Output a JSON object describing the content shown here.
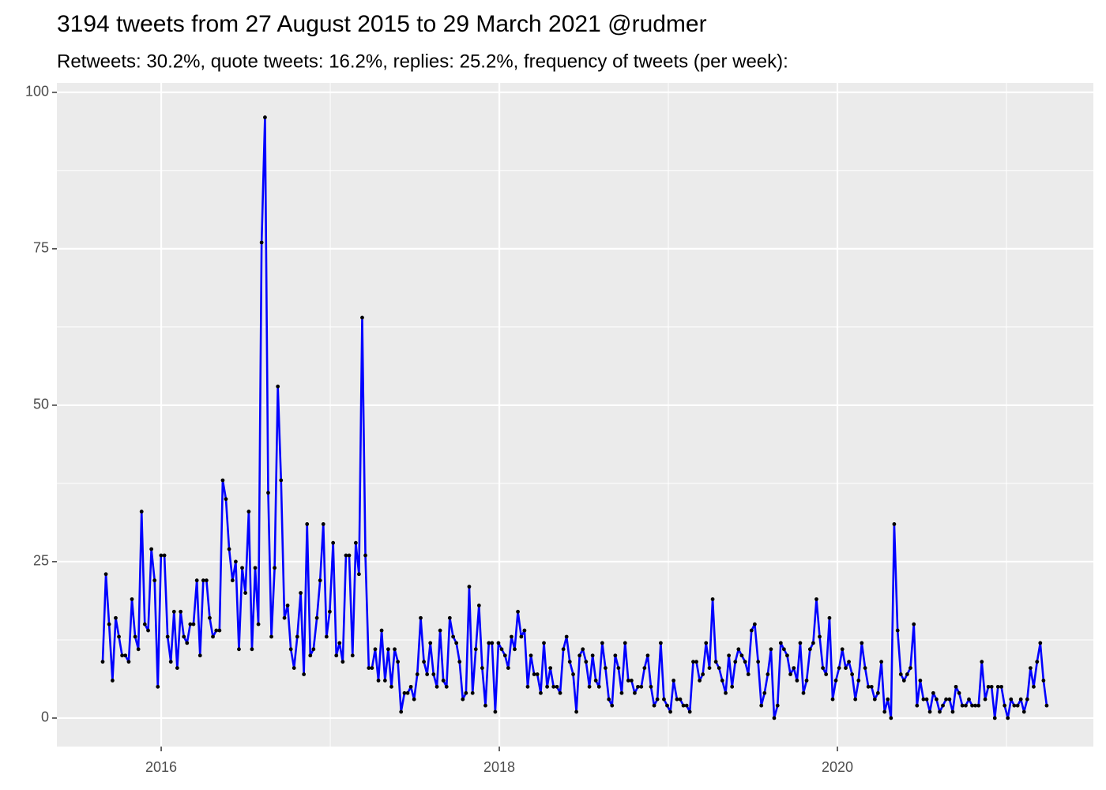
{
  "chart_data": {
    "type": "line",
    "title": "3194 tweets from 27 August 2015 to 29 March 2021 @rudmer",
    "subtitle": "Retweets: 30.2%, quote tweets: 16.2%, replies: 25.2%, frequency of tweets (per week):",
    "color": "#0000ff",
    "marker_color": "#000000",
    "grid": true,
    "xlim": [
      2015.383,
      2021.514
    ],
    "xticks": [
      2016,
      2018,
      2020
    ],
    "x_minor_grid": [
      2017,
      2019,
      2021
    ],
    "ylim": [
      -4.55,
      101.5
    ],
    "yticks": [
      0,
      25,
      50,
      75,
      100
    ],
    "y_minor_grid": [
      12.5,
      37.5,
      62.5,
      87.5
    ],
    "x": [
      2015.654,
      2015.673,
      2015.692,
      2015.712,
      2015.731,
      2015.75,
      2015.769,
      2015.788,
      2015.808,
      2015.827,
      2015.846,
      2015.865,
      2015.884,
      2015.903,
      2015.923,
      2015.942,
      2015.961,
      2015.98,
      2015.999,
      2016.019,
      2016.038,
      2016.057,
      2016.076,
      2016.095,
      2016.115,
      2016.134,
      2016.153,
      2016.172,
      2016.191,
      2016.211,
      2016.23,
      2016.249,
      2016.268,
      2016.287,
      2016.306,
      2016.326,
      2016.345,
      2016.364,
      2016.383,
      2016.402,
      2016.422,
      2016.441,
      2016.46,
      2016.479,
      2016.498,
      2016.518,
      2016.537,
      2016.556,
      2016.575,
      2016.594,
      2016.614,
      2016.633,
      2016.652,
      2016.671,
      2016.69,
      2016.709,
      2016.729,
      2016.748,
      2016.767,
      2016.786,
      2016.805,
      2016.825,
      2016.844,
      2016.863,
      2016.882,
      2016.901,
      2016.921,
      2016.94,
      2016.959,
      2016.978,
      2016.997,
      2017.017,
      2017.036,
      2017.055,
      2017.074,
      2017.093,
      2017.112,
      2017.132,
      2017.151,
      2017.17,
      2017.189,
      2017.208,
      2017.228,
      2017.247,
      2017.266,
      2017.285,
      2017.304,
      2017.324,
      2017.343,
      2017.362,
      2017.381,
      2017.4,
      2017.419,
      2017.439,
      2017.458,
      2017.477,
      2017.496,
      2017.515,
      2017.535,
      2017.554,
      2017.573,
      2017.592,
      2017.611,
      2017.631,
      2017.65,
      2017.669,
      2017.688,
      2017.707,
      2017.727,
      2017.746,
      2017.765,
      2017.784,
      2017.803,
      2017.822,
      2017.842,
      2017.861,
      2017.88,
      2017.899,
      2017.918,
      2017.938,
      2017.957,
      2017.976,
      2017.995,
      2018.014,
      2018.034,
      2018.053,
      2018.072,
      2018.091,
      2018.11,
      2018.13,
      2018.149,
      2018.168,
      2018.187,
      2018.206,
      2018.225,
      2018.245,
      2018.264,
      2018.283,
      2018.302,
      2018.321,
      2018.341,
      2018.36,
      2018.379,
      2018.398,
      2018.417,
      2018.437,
      2018.456,
      2018.475,
      2018.494,
      2018.513,
      2018.533,
      2018.552,
      2018.571,
      2018.59,
      2018.609,
      2018.628,
      2018.648,
      2018.667,
      2018.686,
      2018.705,
      2018.724,
      2018.744,
      2018.763,
      2018.782,
      2018.801,
      2018.82,
      2018.84,
      2018.859,
      2018.878,
      2018.897,
      2018.916,
      2018.935,
      2018.955,
      2018.974,
      2018.993,
      2019.012,
      2019.031,
      2019.051,
      2019.07,
      2019.089,
      2019.108,
      2019.127,
      2019.147,
      2019.166,
      2019.185,
      2019.204,
      2019.223,
      2019.243,
      2019.262,
      2019.281,
      2019.3,
      2019.319,
      2019.339,
      2019.358,
      2019.377,
      2019.396,
      2019.415,
      2019.434,
      2019.454,
      2019.473,
      2019.492,
      2019.511,
      2019.531,
      2019.55,
      2019.569,
      2019.588,
      2019.607,
      2019.626,
      2019.646,
      2019.665,
      2019.684,
      2019.703,
      2019.722,
      2019.742,
      2019.761,
      2019.78,
      2019.799,
      2019.818,
      2019.838,
      2019.857,
      2019.876,
      2019.895,
      2019.914,
      2019.933,
      2019.953,
      2019.972,
      2019.991,
      2020.01,
      2020.029,
      2020.049,
      2020.068,
      2020.087,
      2020.106,
      2020.125,
      2020.144,
      2020.164,
      2020.183,
      2020.202,
      2020.221,
      2020.24,
      2020.26,
      2020.279,
      2020.298,
      2020.317,
      2020.336,
      2020.356,
      2020.375,
      2020.394,
      2020.413,
      2020.432,
      2020.452,
      2020.471,
      2020.49,
      2020.509,
      2020.528,
      2020.547,
      2020.567,
      2020.586,
      2020.605,
      2020.624,
      2020.643,
      2020.663,
      2020.682,
      2020.701,
      2020.72,
      2020.739,
      2020.759,
      2020.778,
      2020.797,
      2020.816,
      2020.835,
      2020.854,
      2020.874,
      2020.893,
      2020.912,
      2020.931,
      2020.95,
      2020.97,
      2020.989,
      2021.008,
      2021.027,
      2021.046,
      2021.066,
      2021.085,
      2021.104,
      2021.123,
      2021.142,
      2021.161,
      2021.181,
      2021.2,
      2021.219,
      2021.238
    ],
    "values": [
      9,
      23,
      15,
      6,
      16,
      13,
      10,
      10,
      9,
      19,
      13,
      11,
      33,
      15,
      14,
      27,
      22,
      5,
      26,
      26,
      13,
      9,
      17,
      8,
      17,
      13,
      12,
      15,
      15,
      22,
      10,
      22,
      22,
      16,
      13,
      14,
      14,
      38,
      35,
      27,
      22,
      25,
      11,
      24,
      20,
      33,
      11,
      24,
      15,
      76,
      96,
      36,
      13,
      24,
      53,
      38,
      16,
      18,
      11,
      8,
      13,
      20,
      7,
      31,
      10,
      11,
      16,
      22,
      31,
      13,
      17,
      28,
      10,
      12,
      9,
      26,
      26,
      10,
      28,
      23,
      64,
      26,
      8,
      8,
      11,
      6,
      14,
      6,
      11,
      5,
      11,
      9,
      1,
      4,
      4,
      5,
      3,
      7,
      16,
      9,
      7,
      12,
      7,
      5,
      14,
      6,
      5,
      16,
      13,
      12,
      9,
      3,
      4,
      21,
      4,
      11,
      18,
      8,
      2,
      12,
      12,
      1,
      12,
      11,
      10,
      8,
      13,
      11,
      17,
      13,
      14,
      5,
      10,
      7,
      7,
      4,
      12,
      5,
      8,
      5,
      5,
      4,
      11,
      13,
      9,
      7,
      1,
      10,
      11,
      9,
      5,
      10,
      6,
      5,
      12,
      8,
      3,
      2,
      10,
      8,
      4,
      12,
      6,
      6,
      4,
      5,
      5,
      8,
      10,
      5,
      2,
      3,
      12,
      3,
      2,
      1,
      6,
      3,
      3,
      2,
      2,
      1,
      9,
      9,
      6,
      7,
      12,
      8,
      19,
      9,
      8,
      6,
      4,
      10,
      5,
      9,
      11,
      10,
      9,
      7,
      14,
      15,
      9,
      2,
      4,
      7,
      11,
      0,
      2,
      12,
      11,
      10,
      7,
      8,
      6,
      12,
      4,
      6,
      11,
      12,
      19,
      13,
      8,
      7,
      16,
      3,
      6,
      8,
      11,
      8,
      9,
      7,
      3,
      6,
      12,
      8,
      5,
      5,
      3,
      4,
      9,
      1,
      3,
      0,
      31,
      14,
      7,
      6,
      7,
      8,
      15,
      2,
      6,
      3,
      3,
      1,
      4,
      3,
      1,
      2,
      3,
      3,
      1,
      5,
      4,
      2,
      2,
      3,
      2,
      2,
      2,
      9,
      3,
      5,
      5,
      0,
      5,
      5,
      2,
      0,
      3,
      2,
      2,
      3,
      1,
      3,
      8,
      5,
      9,
      12,
      6,
      2
    ]
  }
}
